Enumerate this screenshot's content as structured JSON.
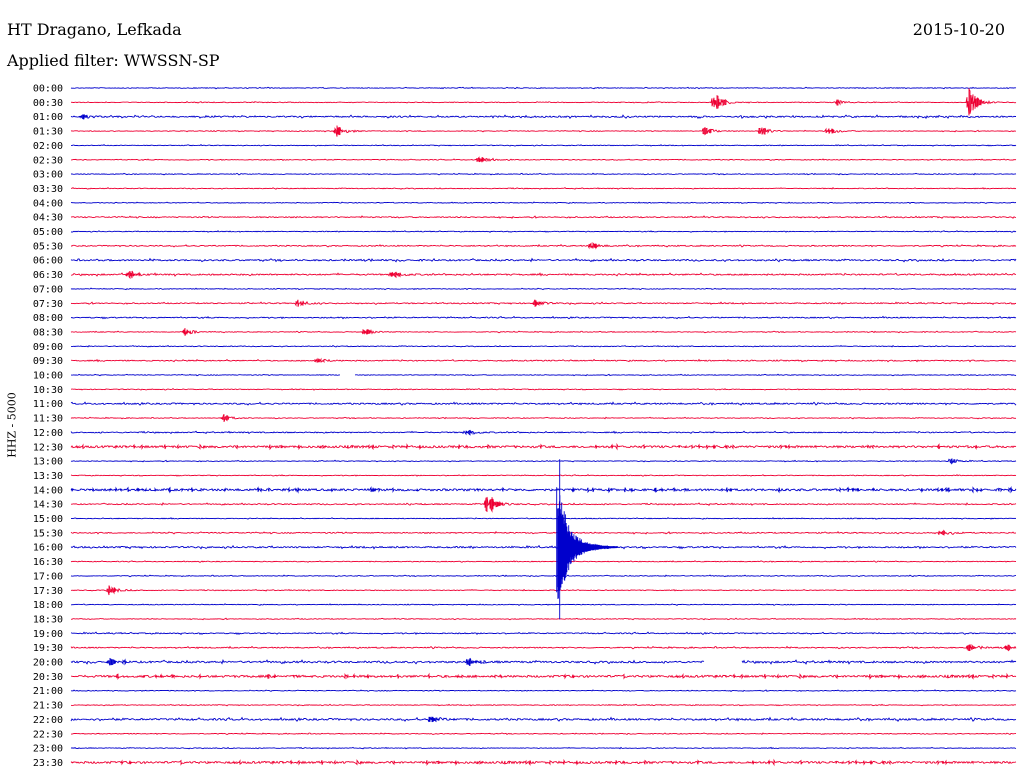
{
  "header": {
    "station": "HT Dragano, Lefkada",
    "date": "2015-10-20",
    "filter": "Applied filter: WWSSN-SP"
  },
  "chart_data": {
    "type": "line",
    "title": "HT Dragano, Lefkada",
    "ylabel": "HHZ - 5000",
    "time_labels": [
      "00:00",
      "00:30",
      "01:00",
      "01:30",
      "02:00",
      "02:30",
      "03:00",
      "03:30",
      "04:00",
      "04:30",
      "05:00",
      "05:30",
      "06:00",
      "06:30",
      "07:00",
      "07:30",
      "08:00",
      "08:30",
      "09:00",
      "09:30",
      "10:00",
      "10:30",
      "11:00",
      "11:30",
      "12:00",
      "12:30",
      "13:00",
      "13:30",
      "14:00",
      "14:30",
      "15:00",
      "15:30",
      "16:00",
      "16:30",
      "17:00",
      "17:30",
      "18:00",
      "18:30",
      "19:00",
      "19:30",
      "20:00",
      "20:30",
      "21:00",
      "21:30",
      "22:00",
      "22:30",
      "23:00",
      "23:30"
    ],
    "trace_colors": [
      "#0000cc",
      "#ee0033"
    ],
    "noise_level": [
      1,
      1,
      2,
      1,
      1,
      1,
      1,
      1,
      1,
      1.5,
      1,
      1.5,
      2,
      2,
      1,
      1.5,
      1.5,
      1,
      1,
      1.5,
      1,
      1,
      2,
      1,
      1.5,
      3,
      1,
      1,
      3,
      1.5,
      1,
      1.5,
      2,
      1,
      1,
      1,
      1,
      1,
      1.5,
      1.5,
      2.5,
      3,
      1,
      1,
      2.5,
      1,
      1,
      3
    ],
    "events": [
      {
        "trace": "00:30",
        "at": 0.68,
        "amp": 11
      },
      {
        "trace": "00:30",
        "at": 0.81,
        "amp": 3
      },
      {
        "trace": "00:30",
        "at": 0.95,
        "amp": 16
      },
      {
        "trace": "01:00",
        "at": 0.01,
        "amp": 3
      },
      {
        "trace": "01:30",
        "at": 0.28,
        "amp": 7
      },
      {
        "trace": "01:30",
        "at": 0.67,
        "amp": 5
      },
      {
        "trace": "01:30",
        "at": 0.73,
        "amp": 5
      },
      {
        "trace": "01:30",
        "at": 0.8,
        "amp": 5
      },
      {
        "trace": "02:30",
        "at": 0.43,
        "amp": 6
      },
      {
        "trace": "05:30",
        "at": 0.55,
        "amp": 4
      },
      {
        "trace": "06:30",
        "at": 0.06,
        "amp": 4
      },
      {
        "trace": "06:30",
        "at": 0.34,
        "amp": 4
      },
      {
        "trace": "07:30",
        "at": 0.24,
        "amp": 4
      },
      {
        "trace": "07:30",
        "at": 0.49,
        "amp": 4
      },
      {
        "trace": "08:30",
        "at": 0.12,
        "amp": 4
      },
      {
        "trace": "08:30",
        "at": 0.31,
        "amp": 4
      },
      {
        "trace": "09:30",
        "at": 0.26,
        "amp": 3
      },
      {
        "trace": "11:30",
        "at": 0.16,
        "amp": 4
      },
      {
        "trace": "12:00",
        "at": 0.42,
        "amp": 3
      },
      {
        "trace": "13:00",
        "at": 0.93,
        "amp": 3
      },
      {
        "trace": "14:30",
        "at": 0.44,
        "amp": 15
      },
      {
        "trace": "15:30",
        "at": 0.92,
        "amp": 3
      },
      {
        "trace": "17:30",
        "at": 0.04,
        "amp": 5
      },
      {
        "trace": "19:30",
        "at": 0.95,
        "amp": 4
      },
      {
        "trace": "19:30",
        "at": 0.99,
        "amp": 3
      },
      {
        "trace": "20:00",
        "at": 0.04,
        "amp": 3
      },
      {
        "trace": "20:00",
        "at": 0.42,
        "amp": 3
      },
      {
        "trace": "22:00",
        "at": 0.38,
        "amp": 4
      }
    ],
    "major_event": {
      "trace": "16:00",
      "at": 0.515,
      "amp": 48
    },
    "gaps": [
      {
        "trace": "10:00",
        "from": 0.285,
        "to": 0.3
      },
      {
        "trace": "20:00",
        "from": 0.67,
        "to": 0.71
      }
    ]
  }
}
